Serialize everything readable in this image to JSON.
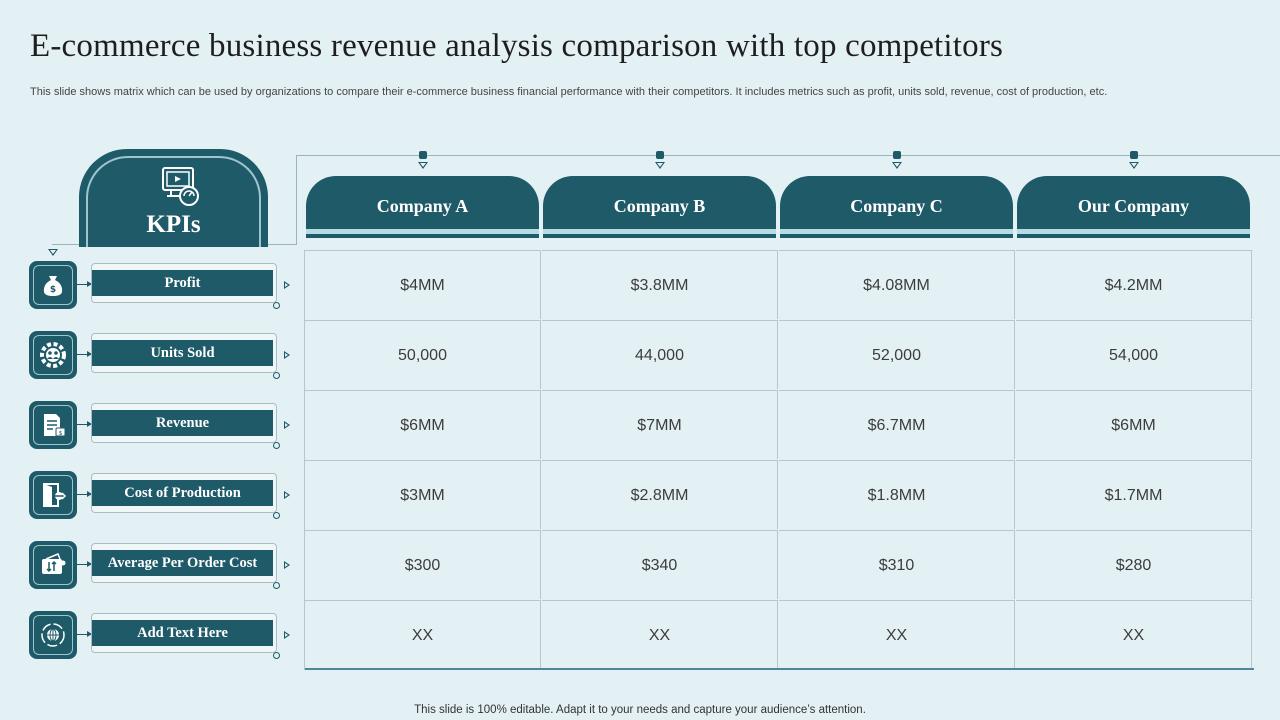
{
  "title": "E-commerce business revenue analysis comparison with top competitors",
  "subtitle": "This slide shows matrix which can be used by organizations to compare their e-commerce business financial performance with their competitors. It includes metrics such as profit, units sold, revenue, cost of production, etc.",
  "kpi_heading": "KPIs",
  "companies": [
    "Company A",
    "Company B",
    "Company C",
    "Our Company"
  ],
  "kpis": [
    {
      "label": "Profit",
      "icon": "money-bag-icon",
      "values": [
        "$4MM",
        "$3.8MM",
        "$4.08MM",
        "$4.2MM"
      ]
    },
    {
      "label": "Units Sold",
      "icon": "gear-people-icon",
      "values": [
        "50,000",
        "44,000",
        "52,000",
        "54,000"
      ]
    },
    {
      "label": "Revenue",
      "icon": "document-dollar-icon",
      "values": [
        "$6MM",
        "$7MM",
        "$6.7MM",
        "$6MM"
      ]
    },
    {
      "label": "Cost of Production",
      "icon": "door-exit-icon",
      "values": [
        "$3MM",
        "$2.8MM",
        "$1.8MM",
        "$1.7MM"
      ]
    },
    {
      "label": "Average Per Order Cost",
      "icon": "wallet-transfer-icon",
      "values": [
        "$300",
        "$340",
        "$310",
        "$280"
      ]
    },
    {
      "label": "Add Text Here",
      "icon": "globe-cycle-icon",
      "values": [
        "XX",
        "XX",
        "XX",
        "XX"
      ]
    }
  ],
  "footer": "This slide is 100% editable. Adapt it to your needs and capture your audience’s attention.",
  "colors": {
    "accent": "#1f5a68",
    "light_accent": "#b7dbe3",
    "background": "#e4f1f4"
  }
}
